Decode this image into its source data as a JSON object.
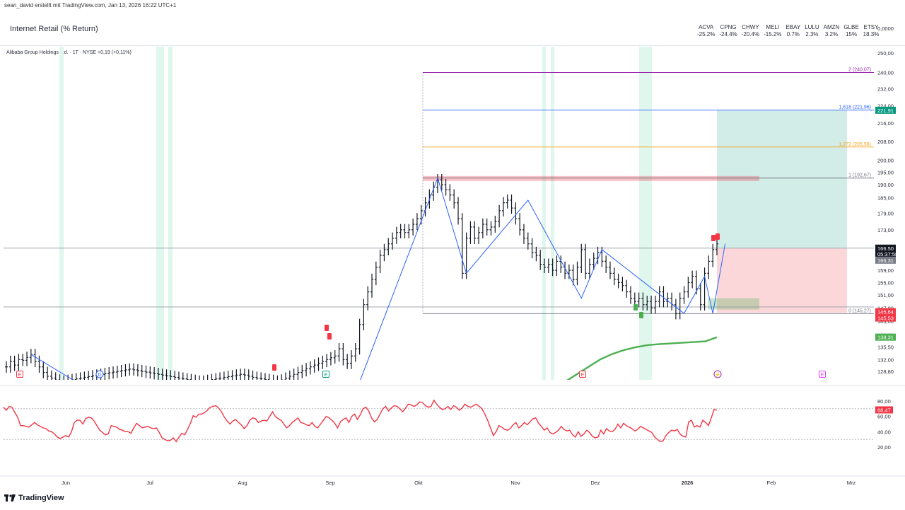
{
  "header": {
    "author_line": "sean_david erstellt mit TradingView.com, Jan 13, 2026 16:22 UTC+1"
  },
  "compare_panel": {
    "title": "Internet Retail (% Return)",
    "tickers": [
      {
        "symbol": "ACVA",
        "value": "-25.2%"
      },
      {
        "symbol": "CPNG",
        "value": "-24.4%"
      },
      {
        "symbol": "CHWY",
        "value": "-20.4%"
      },
      {
        "symbol": "MELI",
        "value": "-15.2%"
      },
      {
        "symbol": "EBAY",
        "value": "0.7%"
      },
      {
        "symbol": "LULU",
        "value": "2.3%"
      },
      {
        "symbol": "AMZN",
        "value": "3.2%"
      },
      {
        "symbol": "GLBE",
        "value": "15%"
      },
      {
        "symbol": "ETSY",
        "value": "18.3%"
      }
    ],
    "axis_value": "0,0000"
  },
  "main_panel": {
    "symbol_line": "Alibaba Group Holdings Ltd. · 1T · NYSE  +0,19 (+0,11%)"
  },
  "brand": {
    "name": "TradingView"
  },
  "chart_data": [
    {
      "type": "candlestick",
      "title": "Alibaba Group Holdings Ltd. · 1T · NYSE",
      "x_labels": [
        "Jun",
        "Jul",
        "Aug",
        "Sep",
        "Okt",
        "Nov",
        "Dez",
        "2026",
        "Feb",
        "Mrz"
      ],
      "y_ticks": [
        "250,00",
        "240,00",
        "232,00",
        "224,00",
        "216,00",
        "208,00",
        "200,00",
        "195,00",
        "190,00",
        "185,00",
        "179,00",
        "173,00",
        "166,00",
        "159,00",
        "155,00",
        "151,00",
        "147,00",
        "143,00",
        "139,00",
        "135,50",
        "132,00",
        "128,80"
      ],
      "ylim": [
        126,
        252
      ],
      "log_scale": true,
      "approx_daily_closes": [
        130,
        131.5,
        130.5,
        132,
        131.8,
        132.6,
        133.4,
        131.5,
        130,
        128.5,
        127.5,
        127,
        126.5,
        126,
        126.2,
        126.4,
        126.6,
        126.8,
        127,
        127.2,
        127.4,
        127.6,
        127.8,
        128,
        128.2,
        128.4,
        128.6,
        128.8,
        129,
        129.2,
        129.4,
        129.2,
        129,
        128.8,
        128.6,
        128.4,
        128.2,
        128,
        127.8,
        127.6,
        127.4,
        127.2,
        127,
        126.8,
        126.6,
        126.4,
        126.2,
        126,
        126.2,
        126.4,
        126.6,
        126.8,
        127,
        127.2,
        127.4,
        127.6,
        127.8,
        128,
        127.8,
        127.5,
        127.2,
        127,
        126.8,
        126.6,
        126.4,
        126.2,
        126,
        126.5,
        127,
        127.5,
        128,
        128.5,
        129,
        129.5,
        130,
        130.5,
        131,
        131.5,
        132,
        132.5,
        133,
        135,
        132,
        131,
        133,
        135,
        142,
        148,
        152,
        156,
        160,
        164,
        166,
        168,
        170,
        172,
        173,
        172,
        173,
        175,
        177,
        180,
        183,
        186,
        189,
        192,
        190,
        188,
        186,
        183,
        177,
        158,
        170,
        174,
        170,
        172,
        175,
        173,
        174,
        176,
        180,
        183,
        184,
        181,
        177,
        173,
        170,
        168,
        165,
        164,
        161,
        160,
        161,
        159,
        162,
        160,
        158,
        159,
        156,
        160,
        166,
        158,
        161,
        163,
        165,
        162,
        160,
        158,
        156,
        155,
        154,
        152,
        150,
        149,
        150,
        148,
        149,
        147,
        149,
        152,
        149,
        150,
        148,
        145.3,
        150,
        152,
        155,
        157,
        153,
        148,
        158,
        162,
        166,
        168
      ],
      "indicators": [
        {
          "name": "moving-average",
          "color": "#4caf50",
          "approx_values": [
            126,
            128,
            130,
            132,
            133.5,
            134.6,
            135.4,
            136,
            136.3,
            136.5,
            136.7,
            136.9,
            137.1,
            138.31
          ]
        },
        {
          "name": "zigzag",
          "color": "#2962ff",
          "pivots": [
            133.4,
            126,
            126,
            192.67,
            158,
            184,
            150,
            166,
            145.3,
            157,
            145.3,
            168
          ]
        }
      ],
      "fibonacci_levels": [
        {
          "ratio": "2",
          "value": "(240,07)",
          "label": "2 (240,07)",
          "color": "#9c27b0"
        },
        {
          "ratio": "1,618",
          "value": "(221,96)",
          "label": "1,618 (221,96)",
          "color": "#2962ff"
        },
        {
          "ratio": "1,272",
          "value": "(205,56)",
          "label": "1,272 (205,56)",
          "color": "#f7a21b"
        },
        {
          "ratio": "1",
          "value": "(192,67)",
          "label": "1 (192,67)",
          "color": "#787b86"
        },
        {
          "ratio": "0",
          "value": "(145,27)",
          "label": "0 (145,27)",
          "color": "#787b86"
        }
      ],
      "price_tags": [
        {
          "label": "221,91",
          "value": 221.91,
          "color": "#089981"
        },
        {
          "label": "166,50",
          "value": 166.5,
          "color": "#131722"
        },
        {
          "label": "05:37:58",
          "value": 166.5,
          "color": "#131722"
        },
        {
          "label": "166,31",
          "value": 166.31,
          "color": "#787b86"
        },
        {
          "label": "145,64",
          "value": 145.64,
          "color": "#f23645"
        },
        {
          "label": "145,53",
          "value": 145.53,
          "color": "#f23645"
        },
        {
          "label": "138,31",
          "value": 138.31,
          "color": "#4caf50"
        }
      ],
      "position_tool": {
        "entry": 166.5,
        "target": 221.91,
        "stop": 145.53
      },
      "resistance_zone": [
        191.5,
        193.5
      ],
      "support_zone": [
        146.5,
        150
      ],
      "horizontal_lines": [
        166.5,
        147.3
      ],
      "event_markers": [
        {
          "letter": "E",
          "color": "#f23645"
        },
        {
          "letter": "D",
          "color": "#2962ff"
        },
        {
          "letter": "E",
          "color": "#089981"
        },
        {
          "letter": "E",
          "color": "#f23645"
        },
        {
          "letter": "⚡",
          "color": "#9c27b0"
        },
        {
          "letter": "E",
          "color": "#e040fb"
        }
      ]
    },
    {
      "type": "line",
      "title": "RSI",
      "y_ticks": [
        "80,00",
        "60,00",
        "40,00",
        "20,00"
      ],
      "ylim": [
        5,
        85
      ],
      "levels": [
        70,
        30
      ],
      "current_label": "68,47",
      "color": "#f23645",
      "approx_values": [
        72,
        68,
        73,
        72,
        65,
        59,
        48,
        48,
        47,
        46,
        49,
        52,
        49,
        47,
        45,
        44,
        41,
        40,
        37,
        33,
        31,
        33,
        35,
        33,
        40,
        52,
        55,
        55,
        50,
        57,
        59,
        58,
        54,
        48,
        42,
        39,
        36,
        37,
        48,
        47,
        46,
        43,
        42,
        40,
        40,
        38,
        45,
        51,
        48,
        45,
        46,
        47,
        45,
        44,
        45,
        39,
        32,
        30,
        28,
        29,
        32,
        27,
        33,
        38,
        36,
        43,
        51,
        61,
        59,
        63,
        63,
        65,
        68,
        72,
        73,
        74,
        71,
        66,
        59,
        54,
        50,
        54,
        56,
        52,
        49,
        44,
        48,
        55,
        58,
        57,
        52,
        54,
        55,
        54,
        60,
        66,
        60,
        57,
        55,
        50,
        45,
        48,
        52,
        55,
        58,
        52,
        51,
        49,
        48,
        52,
        47,
        45,
        50,
        55,
        60,
        58,
        55,
        51,
        45,
        53,
        56,
        58,
        52,
        60,
        63,
        56,
        62,
        70,
        72,
        67,
        58,
        53,
        56,
        63,
        70,
        73,
        67,
        71,
        74,
        73,
        70,
        66,
        71,
        76,
        75,
        73,
        75,
        79,
        78,
        74,
        72,
        73,
        81,
        76,
        72,
        69,
        70,
        73,
        69,
        74,
        72,
        68,
        71,
        76,
        73,
        72,
        74,
        76,
        73,
        70,
        63,
        55,
        45,
        35,
        40,
        48,
        46,
        43,
        42,
        44,
        49,
        52,
        45,
        48,
        52,
        49,
        53,
        57,
        58,
        51,
        47,
        42,
        45,
        39,
        37,
        39,
        42,
        47,
        43,
        41,
        42,
        36,
        33,
        40,
        34,
        37,
        42,
        39,
        34,
        32,
        33,
        42,
        37,
        44,
        41,
        40,
        43,
        50,
        45,
        51,
        48,
        46,
        44,
        41,
        43,
        47,
        45,
        43,
        41,
        39,
        33,
        30,
        27,
        28,
        35,
        39,
        42,
        41,
        43,
        37,
        34,
        33,
        53,
        55,
        46,
        48,
        46,
        55,
        52,
        48,
        58,
        69,
        68
      ]
    }
  ]
}
